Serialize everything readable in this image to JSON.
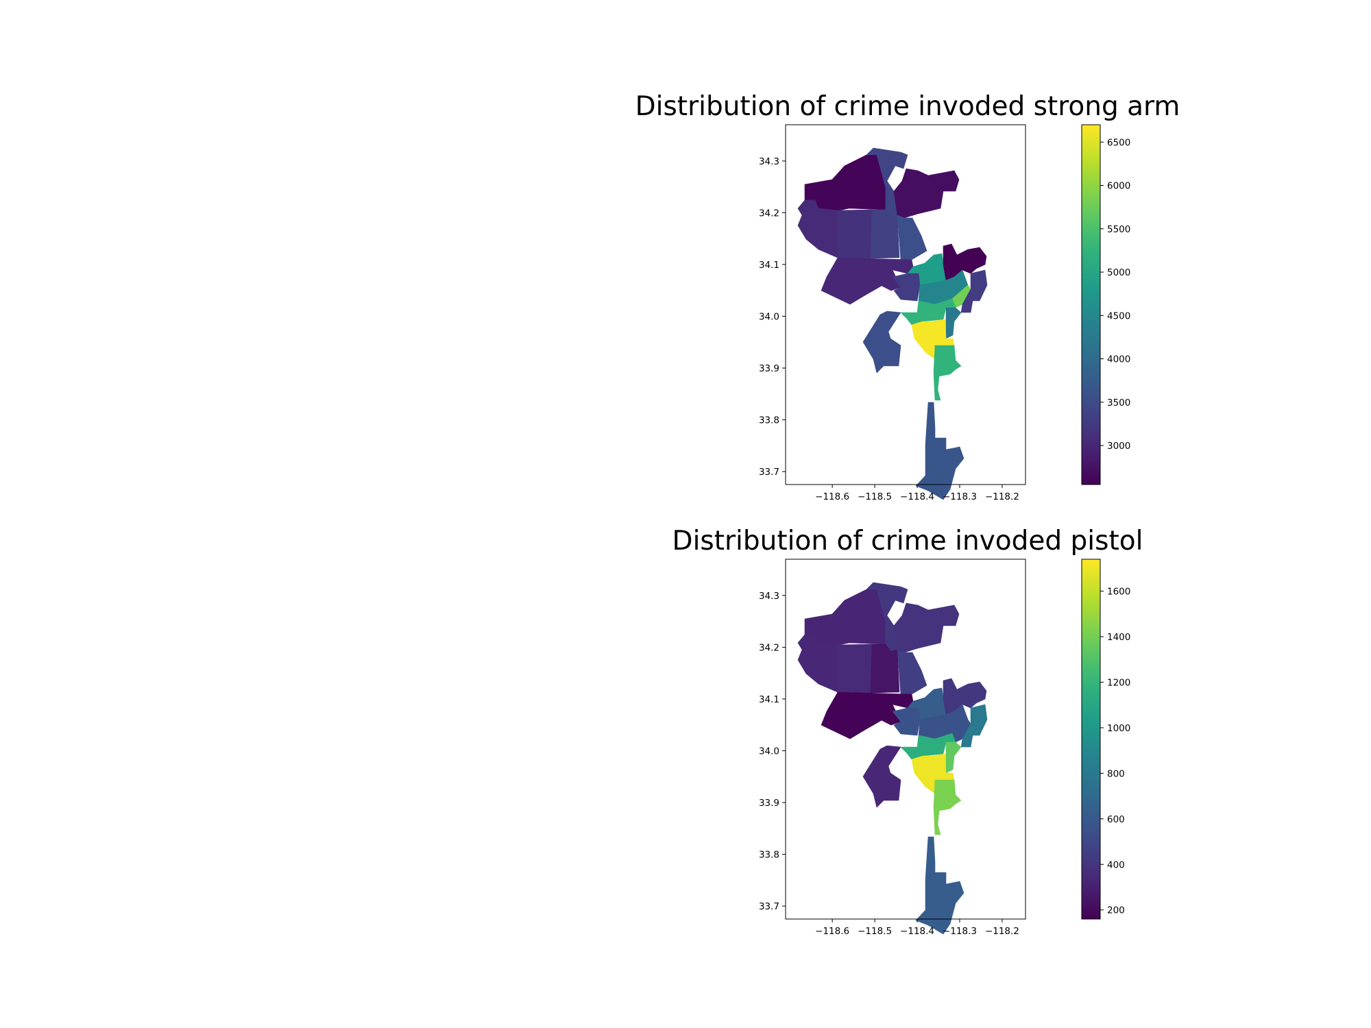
{
  "maps": [
    {
      "title": "Distribution of crime invoded strong arm",
      "x_ticks": [
        "−118.6",
        "−118.5",
        "−118.4",
        "−118.3",
        "−118.2"
      ],
      "y_ticks": [
        "34.3",
        "34.2",
        "34.1",
        "34.0",
        "33.9",
        "33.8",
        "33.7"
      ],
      "colorbar": {
        "min": 2550,
        "max": 6700,
        "ticks": [
          "6500",
          "6000",
          "5500",
          "5000",
          "4500",
          "4000",
          "3500",
          "3000"
        ],
        "tick_values": [
          6500,
          6000,
          5500,
          5000,
          4500,
          4000,
          3500,
          3000
        ]
      },
      "region_values": {
        "north-valley-west": 2600,
        "north-valley-mid": 3400,
        "foothill": 2700,
        "west-valley": 3050,
        "van-nuys": 3150,
        "north-hollywood": 3350,
        "hollywood-burbank": 3550,
        "west-la": 3000,
        "hollywood": 4850,
        "northeast": 2560,
        "east-edge": 3300,
        "wilshire": 3300,
        "central": 4450,
        "rampart": 5800,
        "hollenbeck": 3250,
        "pacific": 3550,
        "southwest": 5250,
        "newton": 4200,
        "southwest-core": 6650,
        "southeast": 5250,
        "harbor": 3650
      }
    },
    {
      "title": "Distribution of crime invoded pistol",
      "x_ticks": [
        "−118.6",
        "−118.5",
        "−118.4",
        "−118.3",
        "−118.2"
      ],
      "y_ticks": [
        "34.3",
        "34.2",
        "34.1",
        "34.0",
        "33.9",
        "33.8",
        "33.7"
      ],
      "colorbar": {
        "min": 160,
        "max": 1740,
        "ticks": [
          "1600",
          "1400",
          "1200",
          "1000",
          "800",
          "600",
          "400",
          "200"
        ],
        "tick_values": [
          1600,
          1400,
          1200,
          1000,
          800,
          600,
          400,
          200
        ]
      },
      "region_values": {
        "north-valley-west": 320,
        "north-valley-mid": 420,
        "foothill": 390,
        "west-valley": 330,
        "van-nuys": 350,
        "north-hollywood": 250,
        "hollywood-burbank": 450,
        "west-la": 170,
        "hollywood": 620,
        "northeast": 420,
        "east-edge": 800,
        "wilshire": 560,
        "central": 560,
        "rampart": 550,
        "hollenbeck": 800,
        "pacific": 330,
        "southwest": 1150,
        "newton": 1350,
        "southwest-core": 1700,
        "southeast": 1420,
        "harbor": 620
      }
    }
  ]
}
